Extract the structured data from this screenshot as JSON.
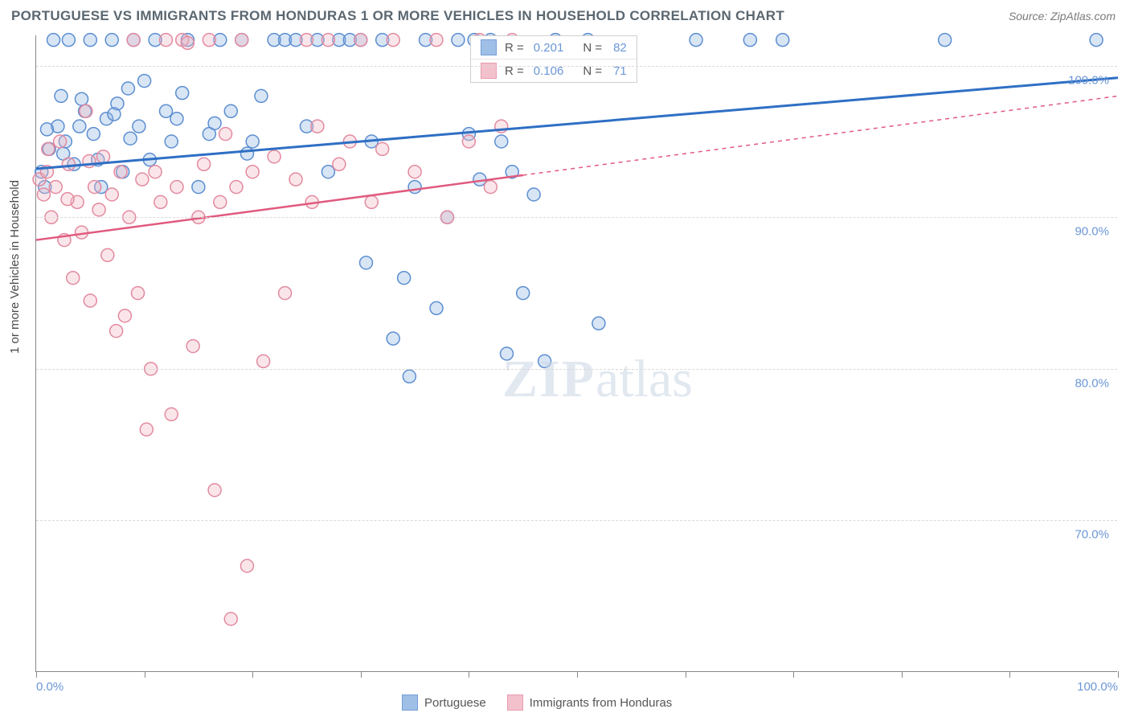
{
  "title": "PORTUGUESE VS IMMIGRANTS FROM HONDURAS 1 OR MORE VEHICLES IN HOUSEHOLD CORRELATION CHART",
  "source": "Source: ZipAtlas.com",
  "y_axis_label": "1 or more Vehicles in Household",
  "watermark_a": "ZIP",
  "watermark_b": "atlas",
  "chart": {
    "type": "scatter",
    "xlim": [
      0,
      100
    ],
    "ylim": [
      60,
      102
    ],
    "y_ticks": [
      70,
      80,
      90,
      100
    ],
    "y_tick_labels": [
      "70.0%",
      "80.0%",
      "90.0%",
      "100.0%"
    ],
    "x_ticks": [
      0,
      10,
      20,
      30,
      40,
      50,
      60,
      70,
      80,
      90,
      100
    ],
    "x_tick_labels_shown": {
      "0": "0.0%",
      "100": "100.0%"
    },
    "background_color": "#ffffff",
    "grid_color": "#d9d9d9",
    "marker_radius": 8,
    "marker_stroke_width": 1.5,
    "series": [
      {
        "name": "Portuguese",
        "color_fill": "#8fb4e3",
        "color_stroke": "#5c8ed1",
        "fill_opacity": 0.35,
        "R": "0.201",
        "N": "82",
        "trend": {
          "x1": 0,
          "y1": 93.2,
          "x2": 100,
          "y2": 99.2,
          "solid_to_x": 100,
          "stroke": "#2f6fc4",
          "width": 3
        },
        "points": [
          [
            0.5,
            93.0
          ],
          [
            0.8,
            92.0
          ],
          [
            1.2,
            94.5
          ],
          [
            1.6,
            101.7
          ],
          [
            2.0,
            96.0
          ],
          [
            2.3,
            98.0
          ],
          [
            2.7,
            95.0
          ],
          [
            3.0,
            101.7
          ],
          [
            3.5,
            93.5
          ],
          [
            4.0,
            96.0
          ],
          [
            4.5,
            97.0
          ],
          [
            5.0,
            101.7
          ],
          [
            5.3,
            95.5
          ],
          [
            6.0,
            92.0
          ],
          [
            6.5,
            96.5
          ],
          [
            7.0,
            101.7
          ],
          [
            7.5,
            97.5
          ],
          [
            8.0,
            93.0
          ],
          [
            8.5,
            98.5
          ],
          [
            9.0,
            101.7
          ],
          [
            9.5,
            96.0
          ],
          [
            10.0,
            99.0
          ],
          [
            11.0,
            101.7
          ],
          [
            12.0,
            97.0
          ],
          [
            12.5,
            95.0
          ],
          [
            13.0,
            96.5
          ],
          [
            14.0,
            101.7
          ],
          [
            15.0,
            92.0
          ],
          [
            16.0,
            95.5
          ],
          [
            17.0,
            101.7
          ],
          [
            18.0,
            97.0
          ],
          [
            19.0,
            101.7
          ],
          [
            20.0,
            95.0
          ],
          [
            20.8,
            98.0
          ],
          [
            22.0,
            101.7
          ],
          [
            23.0,
            101.7
          ],
          [
            24.0,
            101.7
          ],
          [
            25.0,
            96.0
          ],
          [
            26.0,
            101.7
          ],
          [
            27.0,
            93.0
          ],
          [
            28.0,
            101.7
          ],
          [
            29.0,
            101.7
          ],
          [
            30.0,
            101.7
          ],
          [
            30.5,
            87.0
          ],
          [
            31.0,
            95.0
          ],
          [
            32.0,
            101.7
          ],
          [
            33.0,
            82.0
          ],
          [
            34.0,
            86.0
          ],
          [
            34.5,
            79.5
          ],
          [
            35.0,
            92.0
          ],
          [
            36.0,
            101.7
          ],
          [
            37.0,
            84.0
          ],
          [
            38.0,
            90.0
          ],
          [
            39.0,
            101.7
          ],
          [
            40.0,
            95.5
          ],
          [
            40.5,
            101.7
          ],
          [
            41.0,
            92.5
          ],
          [
            42.0,
            101.7
          ],
          [
            43.0,
            95.0
          ],
          [
            43.5,
            81.0
          ],
          [
            44.0,
            93.0
          ],
          [
            45.0,
            85.0
          ],
          [
            46.0,
            91.5
          ],
          [
            47.0,
            80.5
          ],
          [
            48.0,
            101.7
          ],
          [
            51.0,
            101.7
          ],
          [
            52.0,
            83.0
          ],
          [
            61.0,
            101.7
          ],
          [
            66.0,
            101.7
          ],
          [
            69.0,
            101.7
          ],
          [
            84.0,
            101.7
          ],
          [
            98.0,
            101.7
          ],
          [
            1.0,
            95.8
          ],
          [
            2.5,
            94.2
          ],
          [
            4.2,
            97.8
          ],
          [
            5.7,
            93.8
          ],
          [
            7.2,
            96.8
          ],
          [
            8.7,
            95.2
          ],
          [
            10.5,
            93.8
          ],
          [
            13.5,
            98.2
          ],
          [
            16.5,
            96.2
          ],
          [
            19.5,
            94.2
          ]
        ]
      },
      {
        "name": "Immigrants from Honduras",
        "color_fill": "#f2b7c4",
        "color_stroke": "#e38aa0",
        "fill_opacity": 0.35,
        "R": "0.106",
        "N": "71",
        "trend": {
          "x1": 0,
          "y1": 88.5,
          "x2": 100,
          "y2": 98.0,
          "solid_to_x": 45,
          "stroke": "#e05a7e",
          "width": 2.5
        },
        "points": [
          [
            0.3,
            92.5
          ],
          [
            0.7,
            91.5
          ],
          [
            1.0,
            93.0
          ],
          [
            1.4,
            90.0
          ],
          [
            1.8,
            92.0
          ],
          [
            2.2,
            95.0
          ],
          [
            2.6,
            88.5
          ],
          [
            3.0,
            93.5
          ],
          [
            3.4,
            86.0
          ],
          [
            3.8,
            91.0
          ],
          [
            4.2,
            89.0
          ],
          [
            4.6,
            97.0
          ],
          [
            5.0,
            84.5
          ],
          [
            5.4,
            92.0
          ],
          [
            5.8,
            90.5
          ],
          [
            6.2,
            94.0
          ],
          [
            6.6,
            87.5
          ],
          [
            7.0,
            91.5
          ],
          [
            7.4,
            82.5
          ],
          [
            7.8,
            93.0
          ],
          [
            8.2,
            83.5
          ],
          [
            8.6,
            90.0
          ],
          [
            9.0,
            101.7
          ],
          [
            9.4,
            85.0
          ],
          [
            9.8,
            92.5
          ],
          [
            10.2,
            76.0
          ],
          [
            10.6,
            80.0
          ],
          [
            11.0,
            93.0
          ],
          [
            11.5,
            91.0
          ],
          [
            12.0,
            101.7
          ],
          [
            12.5,
            77.0
          ],
          [
            13.0,
            92.0
          ],
          [
            13.5,
            101.7
          ],
          [
            14.0,
            101.5
          ],
          [
            14.5,
            81.5
          ],
          [
            15.0,
            90.0
          ],
          [
            15.5,
            93.5
          ],
          [
            16.0,
            101.7
          ],
          [
            16.5,
            72.0
          ],
          [
            17.0,
            91.0
          ],
          [
            17.5,
            95.5
          ],
          [
            18.0,
            63.5
          ],
          [
            18.5,
            92.0
          ],
          [
            19.0,
            101.7
          ],
          [
            19.5,
            67.0
          ],
          [
            20.0,
            93.0
          ],
          [
            21.0,
            80.5
          ],
          [
            22.0,
            94.0
          ],
          [
            23.0,
            85.0
          ],
          [
            24.0,
            92.5
          ],
          [
            25.0,
            101.7
          ],
          [
            25.5,
            91.0
          ],
          [
            26.0,
            96.0
          ],
          [
            27.0,
            101.7
          ],
          [
            28.0,
            93.5
          ],
          [
            29.0,
            95.0
          ],
          [
            30.0,
            101.7
          ],
          [
            31.0,
            91.0
          ],
          [
            32.0,
            94.5
          ],
          [
            33.0,
            101.7
          ],
          [
            35.0,
            93.0
          ],
          [
            37.0,
            101.7
          ],
          [
            38.0,
            90.0
          ],
          [
            40.0,
            95.0
          ],
          [
            41.0,
            101.7
          ],
          [
            42.0,
            92.0
          ],
          [
            43.0,
            96.0
          ],
          [
            44.0,
            101.7
          ],
          [
            1.1,
            94.5
          ],
          [
            2.9,
            91.2
          ],
          [
            4.9,
            93.7
          ]
        ]
      }
    ]
  },
  "legend_bottom": {
    "series1_label": "Portuguese",
    "series2_label": "Immigrants from Honduras"
  }
}
